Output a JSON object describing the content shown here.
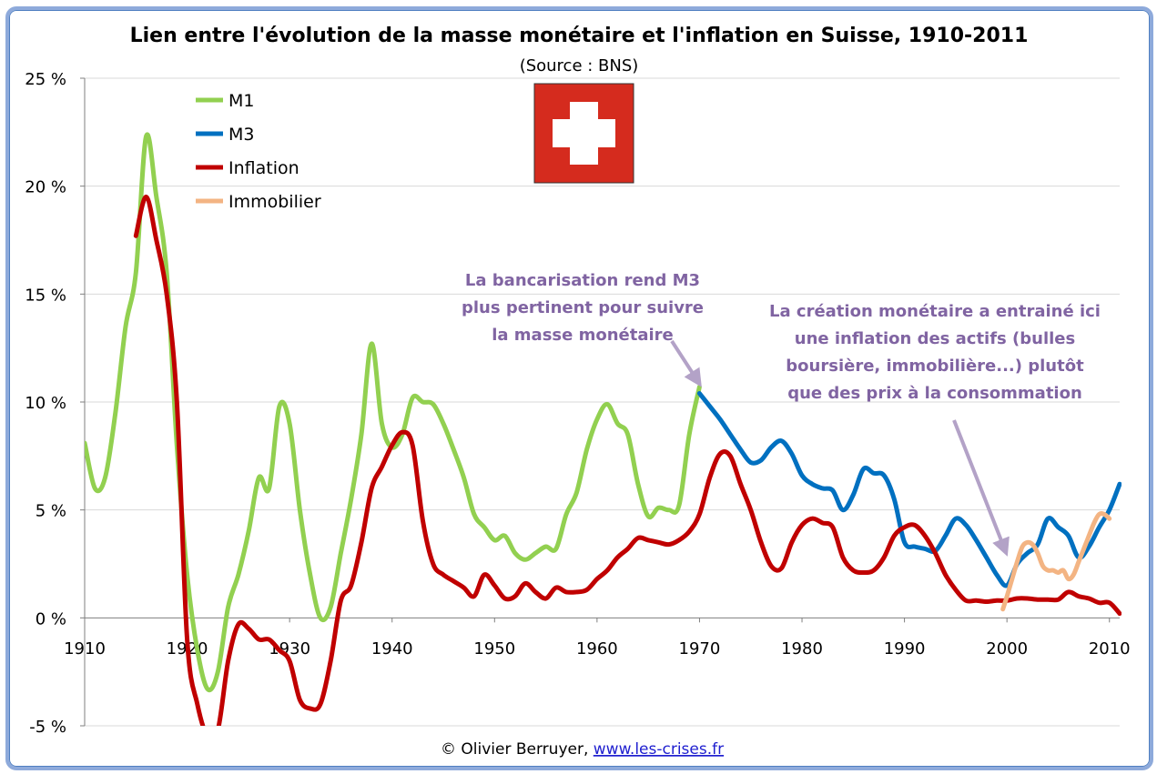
{
  "chart_data": {
    "type": "line",
    "title": "Lien entre l'évolution de la masse monétaire et l'inflation en Suisse, 1910-2011",
    "subtitle": "(Source : BNS)",
    "xlabel": "",
    "ylabel": "",
    "xlim": [
      1910,
      2011
    ],
    "ylim": [
      -5,
      25
    ],
    "x_ticks": [
      "1910",
      "1920",
      "1930",
      "1940",
      "1950",
      "1960",
      "1970",
      "1980",
      "1990",
      "2000",
      "2010"
    ],
    "y_ticks": [
      "25 %",
      "20 %",
      "15 %",
      "10 %",
      "5 %",
      "0 %",
      "-5 %"
    ],
    "y_tick_values": [
      25,
      20,
      15,
      10,
      5,
      0,
      -5
    ],
    "grid": "horizontal",
    "legend_position": "top-left",
    "series": [
      {
        "name": "M1",
        "color": "#92d050",
        "points": [
          [
            1910,
            8.1
          ],
          [
            1911,
            6
          ],
          [
            1912,
            6.5
          ],
          [
            1913,
            9.5
          ],
          [
            1914,
            13.5
          ],
          [
            1915,
            16
          ],
          [
            1916,
            22.3
          ],
          [
            1917,
            19.5
          ],
          [
            1918,
            16
          ],
          [
            1919,
            8
          ],
          [
            1920,
            2
          ],
          [
            1921,
            -1.5
          ],
          [
            1922,
            -3.3
          ],
          [
            1923,
            -2.5
          ],
          [
            1924,
            0.5
          ],
          [
            1925,
            2
          ],
          [
            1926,
            4
          ],
          [
            1927,
            6.5
          ],
          [
            1928,
            6
          ],
          [
            1929,
            9.8
          ],
          [
            1930,
            9
          ],
          [
            1931,
            5
          ],
          [
            1932,
            2
          ],
          [
            1933,
            0
          ],
          [
            1934,
            0.5
          ],
          [
            1935,
            3
          ],
          [
            1936,
            5.5
          ],
          [
            1937,
            8.5
          ],
          [
            1938,
            12.7
          ],
          [
            1939,
            9
          ],
          [
            1940,
            7.9
          ],
          [
            1941,
            8.5
          ],
          [
            1942,
            10.2
          ],
          [
            1943,
            10
          ],
          [
            1944,
            9.9
          ],
          [
            1945,
            9
          ],
          [
            1946,
            7.8
          ],
          [
            1947,
            6.5
          ],
          [
            1948,
            4.8
          ],
          [
            1949,
            4.2
          ],
          [
            1950,
            3.6
          ],
          [
            1951,
            3.8
          ],
          [
            1952,
            3
          ],
          [
            1953,
            2.7
          ],
          [
            1954,
            3
          ],
          [
            1955,
            3.3
          ],
          [
            1956,
            3.2
          ],
          [
            1957,
            4.8
          ],
          [
            1958,
            5.8
          ],
          [
            1959,
            7.8
          ],
          [
            1960,
            9.2
          ],
          [
            1961,
            9.9
          ],
          [
            1962,
            9
          ],
          [
            1963,
            8.5
          ],
          [
            1964,
            6.2
          ],
          [
            1965,
            4.7
          ],
          [
            1966,
            5.1
          ],
          [
            1967,
            5
          ],
          [
            1968,
            5.2
          ],
          [
            1969,
            8.5
          ],
          [
            1970,
            10.7
          ]
        ]
      },
      {
        "name": "M3",
        "color": "#0070c0",
        "points": [
          [
            1970,
            10.4
          ],
          [
            1971,
            9.8
          ],
          [
            1972,
            9.2
          ],
          [
            1973,
            8.5
          ],
          [
            1974,
            7.8
          ],
          [
            1975,
            7.2
          ],
          [
            1976,
            7.3
          ],
          [
            1977,
            7.9
          ],
          [
            1978,
            8.2
          ],
          [
            1979,
            7.6
          ],
          [
            1980,
            6.6
          ],
          [
            1981,
            6.2
          ],
          [
            1982,
            6
          ],
          [
            1983,
            5.9
          ],
          [
            1984,
            5
          ],
          [
            1985,
            5.7
          ],
          [
            1986,
            6.9
          ],
          [
            1987,
            6.7
          ],
          [
            1988,
            6.6
          ],
          [
            1989,
            5.5
          ],
          [
            1990,
            3.5
          ],
          [
            1991,
            3.3
          ],
          [
            1992,
            3.2
          ],
          [
            1993,
            3.1
          ],
          [
            1994,
            3.8
          ],
          [
            1995,
            4.6
          ],
          [
            1996,
            4.3
          ],
          [
            1997,
            3.6
          ],
          [
            1998,
            2.8
          ],
          [
            1999,
            2
          ],
          [
            2000,
            1.5
          ],
          [
            2001,
            2.5
          ],
          [
            2002,
            3
          ],
          [
            2003,
            3.4
          ],
          [
            2004,
            4.6
          ],
          [
            2005,
            4.2
          ],
          [
            2006,
            3.8
          ],
          [
            2007,
            2.8
          ],
          [
            2008,
            3.3
          ],
          [
            2009,
            4.2
          ],
          [
            2010,
            5
          ],
          [
            2011,
            6.2
          ]
        ]
      },
      {
        "name": "Inflation",
        "color": "#c00000",
        "points": [
          [
            1915,
            17.7
          ],
          [
            1916,
            19.5
          ],
          [
            1917,
            17.5
          ],
          [
            1918,
            15
          ],
          [
            1919,
            10
          ],
          [
            1920,
            -1
          ],
          [
            1921,
            -4
          ],
          [
            1922,
            -5.5
          ],
          [
            1923,
            -5.2
          ],
          [
            1924,
            -2
          ],
          [
            1925,
            -0.3
          ],
          [
            1926,
            -0.5
          ],
          [
            1927,
            -1
          ],
          [
            1928,
            -1
          ],
          [
            1929,
            -1.5
          ],
          [
            1930,
            -2
          ],
          [
            1931,
            -3.8
          ],
          [
            1932,
            -4.2
          ],
          [
            1933,
            -4
          ],
          [
            1934,
            -2
          ],
          [
            1935,
            0.8
          ],
          [
            1936,
            1.5
          ],
          [
            1937,
            3.5
          ],
          [
            1938,
            6
          ],
          [
            1939,
            7
          ],
          [
            1940,
            8
          ],
          [
            1941,
            8.6
          ],
          [
            1942,
            8
          ],
          [
            1943,
            4.5
          ],
          [
            1944,
            2.5
          ],
          [
            1945,
            2
          ],
          [
            1946,
            1.7
          ],
          [
            1947,
            1.4
          ],
          [
            1948,
            1
          ],
          [
            1949,
            2
          ],
          [
            1950,
            1.5
          ],
          [
            1951,
            0.9
          ],
          [
            1952,
            1
          ],
          [
            1953,
            1.6
          ],
          [
            1954,
            1.2
          ],
          [
            1955,
            0.9
          ],
          [
            1956,
            1.4
          ],
          [
            1957,
            1.2
          ],
          [
            1958,
            1.2
          ],
          [
            1959,
            1.3
          ],
          [
            1960,
            1.8
          ],
          [
            1961,
            2.2
          ],
          [
            1962,
            2.8
          ],
          [
            1963,
            3.2
          ],
          [
            1964,
            3.7
          ],
          [
            1965,
            3.6
          ],
          [
            1966,
            3.5
          ],
          [
            1967,
            3.4
          ],
          [
            1968,
            3.6
          ],
          [
            1969,
            4
          ],
          [
            1970,
            4.8
          ],
          [
            1971,
            6.5
          ],
          [
            1972,
            7.6
          ],
          [
            1973,
            7.5
          ],
          [
            1974,
            6.2
          ],
          [
            1975,
            5
          ],
          [
            1976,
            3.5
          ],
          [
            1977,
            2.4
          ],
          [
            1978,
            2.3
          ],
          [
            1979,
            3.5
          ],
          [
            1980,
            4.3
          ],
          [
            1981,
            4.6
          ],
          [
            1982,
            4.4
          ],
          [
            1983,
            4.2
          ],
          [
            1984,
            2.8
          ],
          [
            1985,
            2.2
          ],
          [
            1986,
            2.1
          ],
          [
            1987,
            2.2
          ],
          [
            1988,
            2.8
          ],
          [
            1989,
            3.8
          ],
          [
            1990,
            4.2
          ],
          [
            1991,
            4.3
          ],
          [
            1992,
            3.8
          ],
          [
            1993,
            3
          ],
          [
            1994,
            2
          ],
          [
            1995,
            1.3
          ],
          [
            1996,
            0.8
          ],
          [
            1997,
            0.8
          ],
          [
            1998,
            0.75
          ],
          [
            1999,
            0.8
          ],
          [
            2000,
            0.8
          ],
          [
            2001,
            0.9
          ],
          [
            2002,
            0.9
          ],
          [
            2003,
            0.85
          ],
          [
            2004,
            0.85
          ],
          [
            2005,
            0.85
          ],
          [
            2006,
            1.2
          ],
          [
            2007,
            1
          ],
          [
            2008,
            0.9
          ],
          [
            2009,
            0.7
          ],
          [
            2010,
            0.7
          ],
          [
            2011,
            0.2
          ]
        ]
      },
      {
        "name": "Immobilier",
        "color": "#f3b483",
        "points": [
          [
            1999.6,
            0.4
          ],
          [
            2000,
            1
          ],
          [
            2000.5,
            1.8
          ],
          [
            2001,
            2.6
          ],
          [
            2001.5,
            3.3
          ],
          [
            2002,
            3.5
          ],
          [
            2002.5,
            3.4
          ],
          [
            2003,
            3
          ],
          [
            2003.5,
            2.4
          ],
          [
            2004,
            2.2
          ],
          [
            2004.5,
            2.2
          ],
          [
            2005,
            2.1
          ],
          [
            2005.5,
            2.2
          ],
          [
            2006,
            1.8
          ],
          [
            2006.5,
            2
          ],
          [
            2007,
            2.6
          ],
          [
            2007.5,
            3.2
          ],
          [
            2008,
            3.8
          ],
          [
            2008.5,
            4.4
          ],
          [
            2009,
            4.8
          ],
          [
            2009.5,
            4.8
          ],
          [
            2010,
            4.6
          ]
        ]
      }
    ],
    "annotations": [
      {
        "lines": [
          "La bancarisation rend M3",
          "plus pertinent pour suivre",
          "la masse monétaire"
        ],
        "points_to": [
          1970,
          10.7
        ],
        "color": "#8064a2"
      },
      {
        "lines": [
          "La création monétaire a entrainé ici",
          "une inflation des actifs (bulles",
          "boursière, immobilière...) plutôt",
          "que des prix à la consommation"
        ],
        "points_to": [
          2000,
          2.9
        ],
        "color": "#8064a2"
      }
    ]
  },
  "credit": {
    "text": "© Olivier Berruyer, ",
    "link": "www.les-crises.fr"
  },
  "flag": {
    "name": "swiss-flag",
    "bg_color": "#d52b1e",
    "cross_color": "#ffffff"
  }
}
